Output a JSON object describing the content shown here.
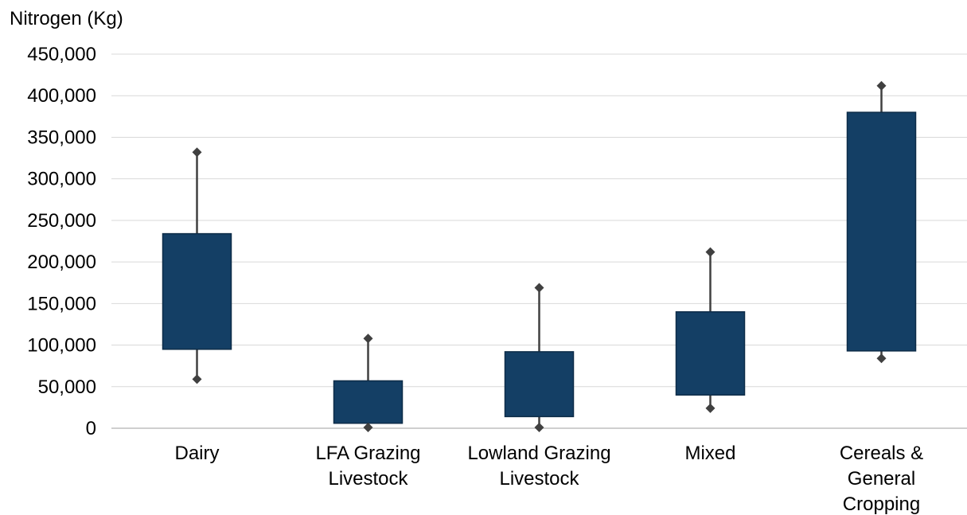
{
  "chart_data": {
    "type": "box",
    "ylabel": "Nitrogen (Kg)",
    "ylim": [
      0,
      450000
    ],
    "yticks": [
      0,
      50000,
      100000,
      150000,
      200000,
      250000,
      300000,
      350000,
      400000,
      450000
    ],
    "ytick_labels": [
      "0",
      "50,000",
      "100,000",
      "150,000",
      "200,000",
      "250,000",
      "300,000",
      "350,000",
      "400,000",
      "450,000"
    ],
    "grid": true,
    "categories": [
      {
        "label_lines": [
          "Dairy"
        ],
        "min": 59000,
        "q1": 95000,
        "q3": 234000,
        "max": 332000
      },
      {
        "label_lines": [
          "LFA Grazing",
          "Livestock"
        ],
        "min": 1000,
        "q1": 6000,
        "q3": 57000,
        "max": 108000
      },
      {
        "label_lines": [
          "Lowland Grazing",
          "Livestock"
        ],
        "min": 1000,
        "q1": 14000,
        "q3": 92000,
        "max": 169000
      },
      {
        "label_lines": [
          "Mixed"
        ],
        "min": 24000,
        "q1": 40000,
        "q3": 140000,
        "max": 212000
      },
      {
        "label_lines": [
          "Cereals &",
          "General",
          "Cropping"
        ],
        "min": 84000,
        "q1": 93000,
        "q3": 380000,
        "max": 412000
      }
    ],
    "colors": {
      "box_fill": "#143f65",
      "box_stroke": "#0d2c48",
      "whisker": "#404040",
      "gridline": "#d9d9d9",
      "axis": "#bfbfbf",
      "marker": "#404040"
    }
  }
}
